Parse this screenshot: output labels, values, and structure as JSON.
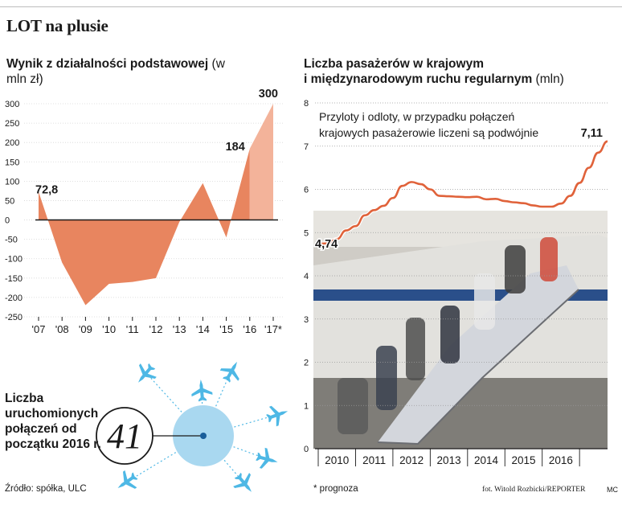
{
  "main_title": "LOT na plusie",
  "left_chart": {
    "title_bold": "Wynik z działalności podstawowej",
    "title_unit": "(w mln zł)"
  },
  "right_chart": {
    "title_line1": "Liczba pasażerów w krajowym",
    "title_line2_bold": "i międzynarodowym ruchu regularnym",
    "title_line2_unit": "(mln)",
    "note_line1": "Przyloty i odloty, w przypadku połączeń",
    "note_line2": "krajowych pasażerowie liczeni są podwójnie"
  },
  "connections": {
    "label": "Liczba uruchomionych połączeń od początku 2016 r.",
    "value": "41"
  },
  "source": "Źródło: spółka, ULC",
  "footnote": "* prognoza",
  "credit": "fot. Witold Rozbicki/REPORTER",
  "author": "MC",
  "colors": {
    "area": "#e8855f",
    "forecast": "#f3b39a",
    "line": "#e0623a",
    "photo": "#c9c6c0",
    "globe": "#a9d8f0",
    "plane": "#4eb8e5"
  },
  "chart_data": [
    {
      "type": "area",
      "title": "Wynik z działalności podstawowej (w mln zł)",
      "x_tick_labels": [
        "'07",
        "'08",
        "'09",
        "'10",
        "'11",
        "'12",
        "'13",
        "'14",
        "'15",
        "'16",
        "'17*"
      ],
      "x": [
        2007,
        2008,
        2009,
        2010,
        2011,
        2012,
        2013,
        2014,
        2015,
        2016,
        2017
      ],
      "values": [
        72.8,
        -110,
        -220,
        -165,
        -160,
        -150,
        -5,
        95,
        -45,
        184,
        300
      ],
      "forecast_from_index": 9,
      "ylim": [
        -250,
        300
      ],
      "yticks": [
        300,
        250,
        200,
        150,
        100,
        50,
        0,
        -50,
        -100,
        -150,
        -200,
        -250
      ],
      "data_labels": [
        {
          "index": 0,
          "text": "72,8"
        },
        {
          "index": 9,
          "text": "184"
        },
        {
          "index": 10,
          "text": "300"
        }
      ],
      "footnote": "* prognoza"
    },
    {
      "type": "line",
      "title": "Liczba pasażerów w krajowym i międzynarodowym ruchu regularnym (mln)",
      "x_tick_labels": [
        "2010",
        "2011",
        "2012",
        "2013",
        "2014",
        "2015",
        "2016"
      ],
      "x": [
        2010.0,
        2010.25,
        2010.5,
        2010.75,
        2011.0,
        2011.25,
        2011.5,
        2011.75,
        2012.0,
        2012.25,
        2012.5,
        2012.75,
        2013.0,
        2013.25,
        2013.5,
        2013.75,
        2014.0,
        2014.25,
        2014.5,
        2014.75,
        2015.0,
        2015.25,
        2015.5,
        2015.75,
        2016.0,
        2016.25,
        2016.5,
        2016.75,
        2017.0,
        2017.25,
        2017.5,
        2017.75
      ],
      "values": [
        4.74,
        4.75,
        4.85,
        5.05,
        5.15,
        5.4,
        5.52,
        5.62,
        5.8,
        6.08,
        6.17,
        6.12,
        6.0,
        5.85,
        5.84,
        5.83,
        5.82,
        5.83,
        5.77,
        5.78,
        5.73,
        5.7,
        5.68,
        5.63,
        5.6,
        5.6,
        5.67,
        5.85,
        6.15,
        6.5,
        6.85,
        7.11
      ],
      "ylim": [
        0,
        8
      ],
      "yticks": [
        0,
        1,
        2,
        3,
        4,
        5,
        6,
        7,
        8
      ],
      "data_labels": [
        {
          "index": 0,
          "text": "4,74"
        },
        {
          "index": 31,
          "text": "7,11"
        }
      ],
      "annotation": "Przyloty i odloty, w przypadku połączeń krajowych pasażerowie liczeni są podwójnie"
    }
  ]
}
